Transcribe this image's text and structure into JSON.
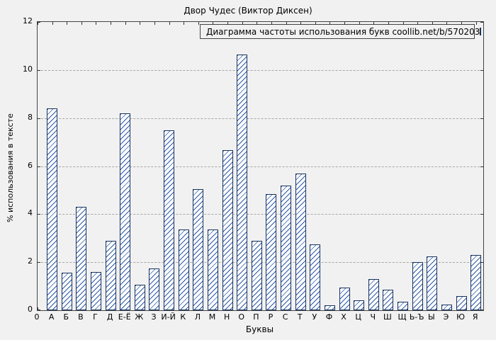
{
  "chart_data": {
    "type": "bar",
    "title": "Двор Чудес (Виктор Диксен)",
    "legend": "Диаграмма частоты использования букв coollib.net/b/570203",
    "legend_position": "top-right",
    "xlabel": "Буквы",
    "ylabel": "% использования в тексте",
    "ylim": [
      0,
      12
    ],
    "yticks": [
      0,
      2,
      4,
      6,
      8,
      10,
      12
    ],
    "x_origin_tick": "0",
    "grid": true,
    "categories": [
      "А",
      "Б",
      "В",
      "Г",
      "Д",
      "Е-Ё",
      "Ж",
      "З",
      "И-Й",
      "К",
      "Л",
      "М",
      "Н",
      "О",
      "П",
      "Р",
      "С",
      "Т",
      "У",
      "Ф",
      "Х",
      "Ц",
      "Ч",
      "Ш",
      "Щ",
      "Ь-Ъ",
      "Ы",
      "Э",
      "Ю",
      "Я"
    ],
    "values": [
      8.4,
      1.55,
      4.3,
      1.6,
      2.9,
      8.2,
      1.05,
      1.75,
      7.5,
      3.35,
      5.05,
      3.35,
      6.65,
      10.65,
      2.9,
      4.85,
      5.2,
      5.7,
      2.75,
      0.2,
      0.95,
      0.4,
      1.3,
      0.85,
      0.35,
      2.0,
      2.25,
      0.25,
      0.6,
      2.3
    ],
    "colors": {
      "bar_border": "#16335f",
      "bar_hatch": "#2a56a5",
      "bar_fill": "#ffffff",
      "grid": "#a8a8a8",
      "background": "#f1f1f1"
    }
  }
}
